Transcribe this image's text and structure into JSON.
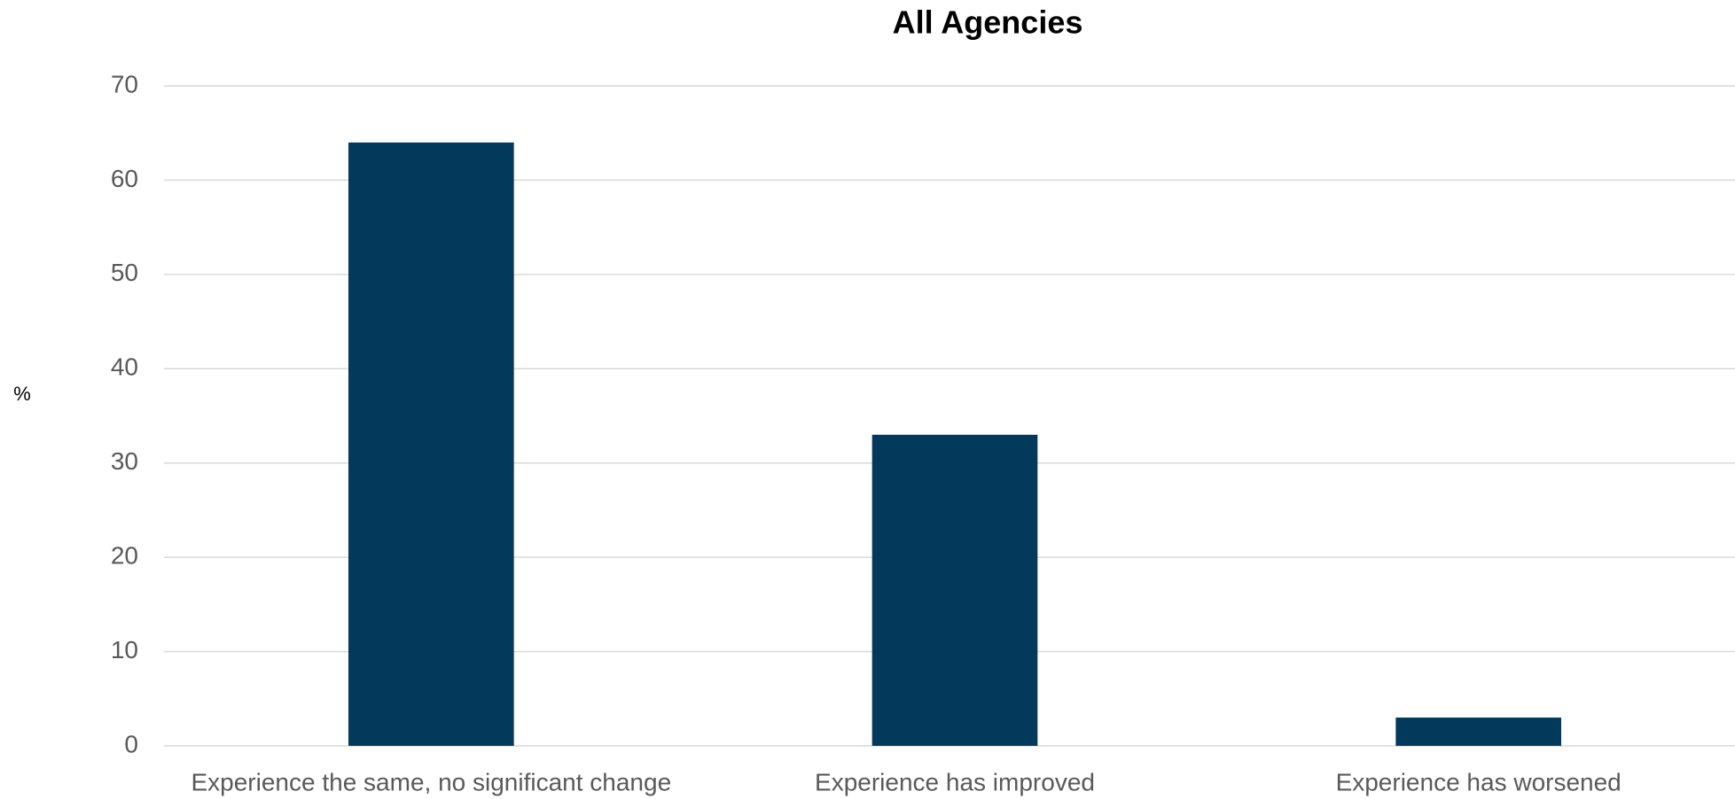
{
  "chart_data": {
    "type": "bar",
    "title": "All Agencies",
    "y_label": "%",
    "categories": [
      "Experience the same, no significant change",
      "Experience has improved",
      "Experience has worsened"
    ],
    "values": [
      64,
      33,
      3
    ],
    "color": "#03395a",
    "ylim": [
      0,
      70
    ],
    "yticks": [
      0,
      10,
      20,
      30,
      40,
      50,
      60,
      70
    ],
    "grid": true
  }
}
